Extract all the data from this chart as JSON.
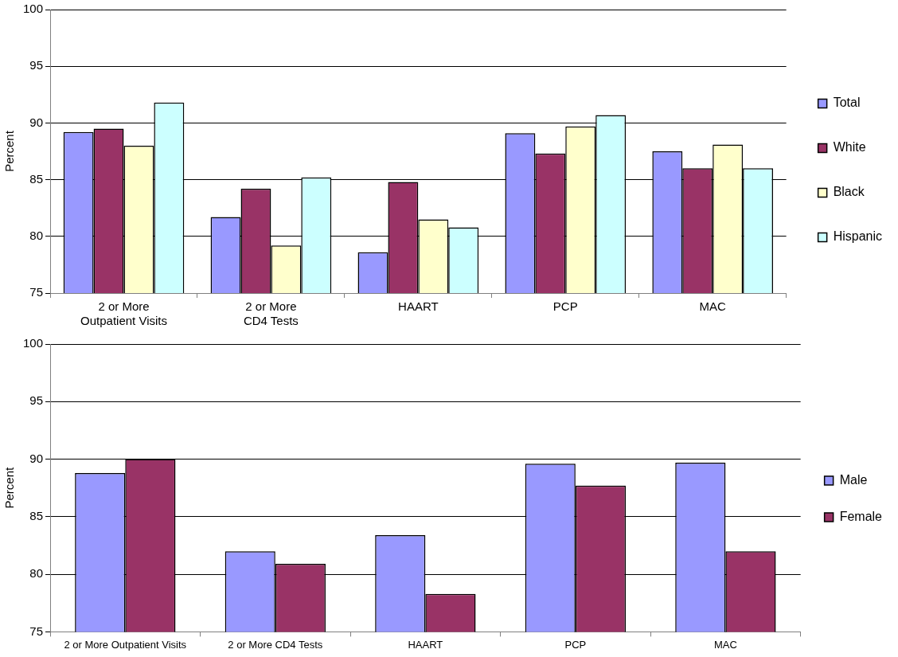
{
  "chart_data": [
    {
      "type": "bar",
      "ylabel": "Percent",
      "categories": [
        "2 or More Outpatient Visits",
        "2 or More CD4 Tests",
        "HAART",
        "PCP",
        "MAC"
      ],
      "series": [
        {
          "name": "Total",
          "color": "#9999ff",
          "values": [
            89.2,
            81.7,
            78.6,
            89.1,
            87.5
          ]
        },
        {
          "name": "White",
          "color": "#993366",
          "values": [
            89.5,
            84.2,
            84.8,
            87.3,
            86.0
          ]
        },
        {
          "name": "Black",
          "color": "#ffffcc",
          "values": [
            88.0,
            79.2,
            81.5,
            89.7,
            88.1
          ]
        },
        {
          "name": "Hispanic",
          "color": "#ccffff",
          "values": [
            91.8,
            85.2,
            80.8,
            90.7,
            86.0
          ]
        }
      ],
      "ylim": [
        75,
        100
      ],
      "yticks": [
        75,
        80,
        85,
        90,
        95,
        100
      ],
      "grid": "y",
      "legend": "right"
    },
    {
      "type": "bar",
      "ylabel": "Percent",
      "categories": [
        "2 or More Outpatient Visits",
        "2 or More CD4 Tests",
        "HAART",
        "PCP",
        "MAC"
      ],
      "series": [
        {
          "name": "Male",
          "color": "#9999ff",
          "values": [
            88.8,
            82.0,
            83.4,
            89.6,
            89.7
          ]
        },
        {
          "name": "Female",
          "color": "#993366",
          "values": [
            90.0,
            80.9,
            78.3,
            87.7,
            82.0
          ]
        }
      ],
      "ylim": [
        75,
        100
      ],
      "yticks": [
        75,
        80,
        85,
        90,
        95,
        100
      ],
      "grid": "y",
      "legend": "right"
    }
  ]
}
